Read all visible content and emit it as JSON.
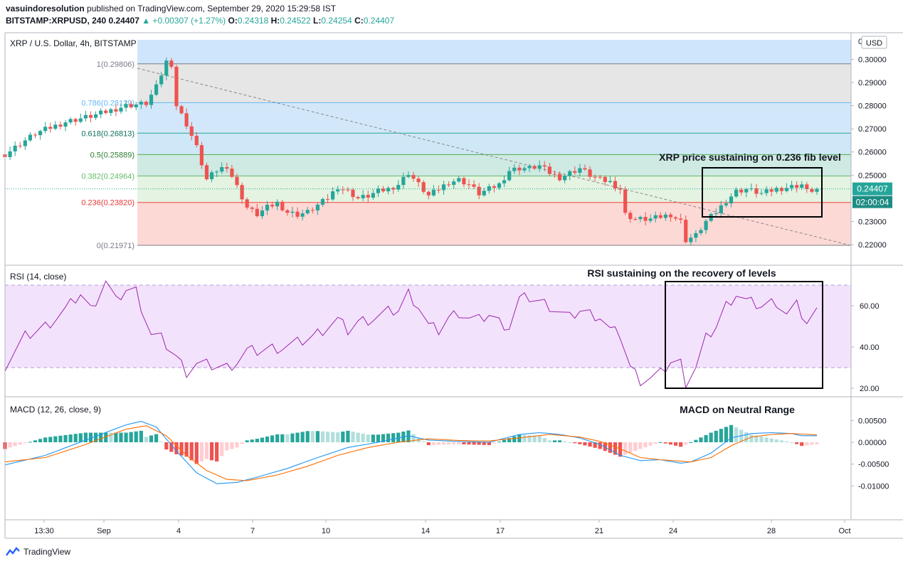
{
  "header": {
    "publisher": "vasuindoresolution",
    "published_text": "published on TradingView.com, September 29, 2020 15:29:58 IST",
    "symbol": "BITSTAMP:XRPUSD, 240",
    "last": "0.24407",
    "change": "▲ +0.00307 (+1.27%)",
    "o_label": "O:",
    "o": "0.24318",
    "h_label": "H:",
    "h": "0.24522",
    "l_label": "L:",
    "l": "0.24254",
    "c_label": "C:",
    "c": "0.24407"
  },
  "footer": {
    "brand": "TradingView"
  },
  "colors": {
    "up": "#26a69a",
    "down": "#ef5350",
    "rsi": "#9c27b0",
    "macd": "#2196f3",
    "signal": "#ff6d00"
  },
  "chart_data": [
    {
      "type": "candlestick",
      "title": "XRP / U.S. Dollar, 4h, BITSTAMP",
      "currency": "USD",
      "ylim": [
        0.217,
        0.305
      ],
      "y_ticks": [
        "0.30000",
        "0.29000",
        "0.28000",
        "0.27000",
        "0.26000",
        "0.25000",
        "0.23000",
        "0.22000"
      ],
      "last_price": "0.24407",
      "countdown": "02:00:04",
      "fib_levels": [
        {
          "label": "1(0.29806)",
          "value": 0.29806
        },
        {
          "label": "0.786(0.28129)",
          "value": 0.28129
        },
        {
          "label": "0.618(0.26813)",
          "value": 0.26813
        },
        {
          "label": "0.5(0.25889)",
          "value": 0.25889
        },
        {
          "label": "0.382(0.24964)",
          "value": 0.24964
        },
        {
          "label": "0.236(0.23820)",
          "value": 0.2382
        },
        {
          "label": "0(0.21971)",
          "value": 0.21971
        }
      ],
      "price_path": [
        [
          0,
          0.259
        ],
        [
          6,
          0.268
        ],
        [
          12,
          0.273
        ],
        [
          18,
          0.276
        ],
        [
          24,
          0.28
        ],
        [
          28,
          0.281
        ],
        [
          30,
          0.288
        ],
        [
          32,
          0.299
        ],
        [
          33,
          0.298
        ],
        [
          34,
          0.28
        ],
        [
          36,
          0.272
        ],
        [
          38,
          0.262
        ],
        [
          40,
          0.248
        ],
        [
          42,
          0.252
        ],
        [
          44,
          0.254
        ],
        [
          46,
          0.245
        ],
        [
          48,
          0.236
        ],
        [
          50,
          0.233
        ],
        [
          52,
          0.236
        ],
        [
          54,
          0.238
        ],
        [
          56,
          0.234
        ],
        [
          58,
          0.233
        ],
        [
          60,
          0.234
        ],
        [
          62,
          0.237
        ],
        [
          64,
          0.24
        ],
        [
          66,
          0.245
        ],
        [
          68,
          0.243
        ],
        [
          70,
          0.24
        ],
        [
          72,
          0.241
        ],
        [
          74,
          0.243
        ],
        [
          76,
          0.244
        ],
        [
          78,
          0.246
        ],
        [
          80,
          0.251
        ],
        [
          82,
          0.246
        ],
        [
          84,
          0.241
        ],
        [
          86,
          0.244
        ],
        [
          88,
          0.247
        ],
        [
          90,
          0.248
        ],
        [
          92,
          0.246
        ],
        [
          94,
          0.242
        ],
        [
          96,
          0.244
        ],
        [
          98,
          0.246
        ],
        [
          100,
          0.252
        ],
        [
          102,
          0.253
        ],
        [
          104,
          0.253
        ],
        [
          106,
          0.254
        ],
        [
          108,
          0.251
        ],
        [
          110,
          0.249
        ],
        [
          112,
          0.251
        ],
        [
          114,
          0.253
        ],
        [
          116,
          0.25
        ],
        [
          118,
          0.248
        ],
        [
          120,
          0.247
        ],
        [
          122,
          0.244
        ],
        [
          123,
          0.233
        ],
        [
          125,
          0.231
        ],
        [
          128,
          0.231
        ],
        [
          130,
          0.232
        ],
        [
          132,
          0.233
        ],
        [
          134,
          0.23
        ],
        [
          135,
          0.222
        ],
        [
          137,
          0.224
        ],
        [
          139,
          0.23
        ],
        [
          141,
          0.234
        ],
        [
          143,
          0.239
        ],
        [
          145,
          0.243
        ],
        [
          147,
          0.244
        ],
        [
          150,
          0.242
        ],
        [
          153,
          0.244
        ],
        [
          156,
          0.245
        ],
        [
          158,
          0.246
        ],
        [
          159,
          0.243
        ],
        [
          161,
          0.244
        ]
      ],
      "x_labels": [
        "13:30",
        "Sep",
        "4",
        "7",
        "10",
        "14",
        "17",
        "21",
        "24",
        "28",
        "Oct"
      ],
      "annotation": "XRP price sustaining on 0.236 fib level"
    },
    {
      "type": "line",
      "title": "RSI (14, close)",
      "ylim": [
        17,
        75
      ],
      "y_ticks": [
        "60.00",
        "40.00",
        "20.00"
      ],
      "bands": [
        30,
        70
      ],
      "values_path": [
        [
          0,
          31
        ],
        [
          4,
          45
        ],
        [
          8,
          50
        ],
        [
          12,
          58
        ],
        [
          15,
          66
        ],
        [
          17,
          58
        ],
        [
          20,
          72
        ],
        [
          22,
          62
        ],
        [
          24,
          68
        ],
        [
          26,
          67
        ],
        [
          29,
          46
        ],
        [
          31,
          44
        ],
        [
          34,
          35
        ],
        [
          36,
          28
        ],
        [
          38,
          32
        ],
        [
          41,
          31
        ],
        [
          44,
          30
        ],
        [
          46,
          33
        ],
        [
          48,
          38
        ],
        [
          50,
          38
        ],
        [
          52,
          39
        ],
        [
          55,
          40
        ],
        [
          58,
          42
        ],
        [
          61,
          45
        ],
        [
          64,
          50
        ],
        [
          66,
          53
        ],
        [
          68,
          48
        ],
        [
          70,
          52
        ],
        [
          73,
          54
        ],
        [
          76,
          57
        ],
        [
          78,
          58
        ],
        [
          80,
          66
        ],
        [
          82,
          60
        ],
        [
          84,
          50
        ],
        [
          86,
          48
        ],
        [
          88,
          54
        ],
        [
          90,
          57
        ],
        [
          92,
          54
        ],
        [
          94,
          53
        ],
        [
          96,
          56
        ],
        [
          98,
          52
        ],
        [
          100,
          50
        ],
        [
          102,
          63
        ],
        [
          104,
          64
        ],
        [
          106,
          62
        ],
        [
          108,
          60
        ],
        [
          110,
          57
        ],
        [
          112,
          54
        ],
        [
          114,
          58
        ],
        [
          116,
          56
        ],
        [
          118,
          55
        ],
        [
          120,
          48
        ],
        [
          122,
          46
        ],
        [
          124,
          30
        ],
        [
          126,
          24
        ],
        [
          128,
          25
        ],
        [
          130,
          27
        ],
        [
          132,
          33
        ],
        [
          134,
          32
        ],
        [
          135,
          23
        ],
        [
          137,
          30
        ],
        [
          139,
          44
        ],
        [
          141,
          50
        ],
        [
          143,
          60
        ],
        [
          145,
          66
        ],
        [
          147,
          62
        ],
        [
          150,
          60
        ],
        [
          153,
          62
        ],
        [
          155,
          56
        ],
        [
          157,
          60
        ],
        [
          159,
          52
        ],
        [
          161,
          57
        ]
      ],
      "annotation": "RSI sustaining on the recovery of levels"
    },
    {
      "type": "line",
      "title": "MACD (12, 26, close, 9)",
      "ylim": [
        -0.011,
        0.006
      ],
      "y_ticks": [
        "0.00500",
        "0.00000",
        "-0.00500",
        "-0.01000"
      ],
      "series": [
        {
          "name": "MACD",
          "values_path": [
            [
              0,
              -0.0052
            ],
            [
              8,
              -0.003
            ],
            [
              16,
              0.0005
            ],
            [
              24,
              0.004
            ],
            [
              27,
              0.0048
            ],
            [
              30,
              0.0035
            ],
            [
              34,
              -0.002
            ],
            [
              38,
              -0.007
            ],
            [
              42,
              -0.0095
            ],
            [
              46,
              -0.0092
            ],
            [
              50,
              -0.008
            ],
            [
              56,
              -0.006
            ],
            [
              62,
              -0.0035
            ],
            [
              68,
              -0.0012
            ],
            [
              74,
              0.0
            ],
            [
              80,
              0.0015
            ],
            [
              84,
              0.0005
            ],
            [
              90,
              0.0002
            ],
            [
              96,
              0.0
            ],
            [
              102,
              0.0018
            ],
            [
              106,
              0.0022
            ],
            [
              110,
              0.0018
            ],
            [
              114,
              0.001
            ],
            [
              118,
              -0.0005
            ],
            [
              122,
              -0.003
            ],
            [
              126,
              -0.0042
            ],
            [
              130,
              -0.004
            ],
            [
              134,
              -0.0048
            ],
            [
              136,
              -0.0045
            ],
            [
              140,
              -0.0025
            ],
            [
              144,
              0.001
            ],
            [
              148,
              0.002
            ],
            [
              152,
              0.0022
            ],
            [
              156,
              0.002
            ],
            [
              158,
              0.0015
            ],
            [
              161,
              0.0015
            ]
          ]
        },
        {
          "name": "Signal",
          "values_path": [
            [
              0,
              -0.0045
            ],
            [
              8,
              -0.0035
            ],
            [
              16,
              -0.0005
            ],
            [
              24,
              0.003
            ],
            [
              28,
              0.0038
            ],
            [
              32,
              0.0015
            ],
            [
              36,
              -0.003
            ],
            [
              40,
              -0.0065
            ],
            [
              44,
              -0.0085
            ],
            [
              48,
              -0.0088
            ],
            [
              54,
              -0.0075
            ],
            [
              60,
              -0.0055
            ],
            [
              66,
              -0.003
            ],
            [
              72,
              -0.0012
            ],
            [
              78,
              0.0
            ],
            [
              84,
              0.0008
            ],
            [
              90,
              0.0004
            ],
            [
              96,
              0.0003
            ],
            [
              102,
              0.001
            ],
            [
              108,
              0.0018
            ],
            [
              114,
              0.0012
            ],
            [
              118,
              0.0002
            ],
            [
              122,
              -0.0015
            ],
            [
              126,
              -0.0035
            ],
            [
              130,
              -0.004
            ],
            [
              136,
              -0.0045
            ],
            [
              140,
              -0.0035
            ],
            [
              144,
              -0.0008
            ],
            [
              148,
              0.0012
            ],
            [
              152,
              0.0018
            ],
            [
              156,
              0.002
            ],
            [
              161,
              0.0017
            ]
          ]
        }
      ],
      "annotation": "MACD on Neutral Range"
    }
  ]
}
